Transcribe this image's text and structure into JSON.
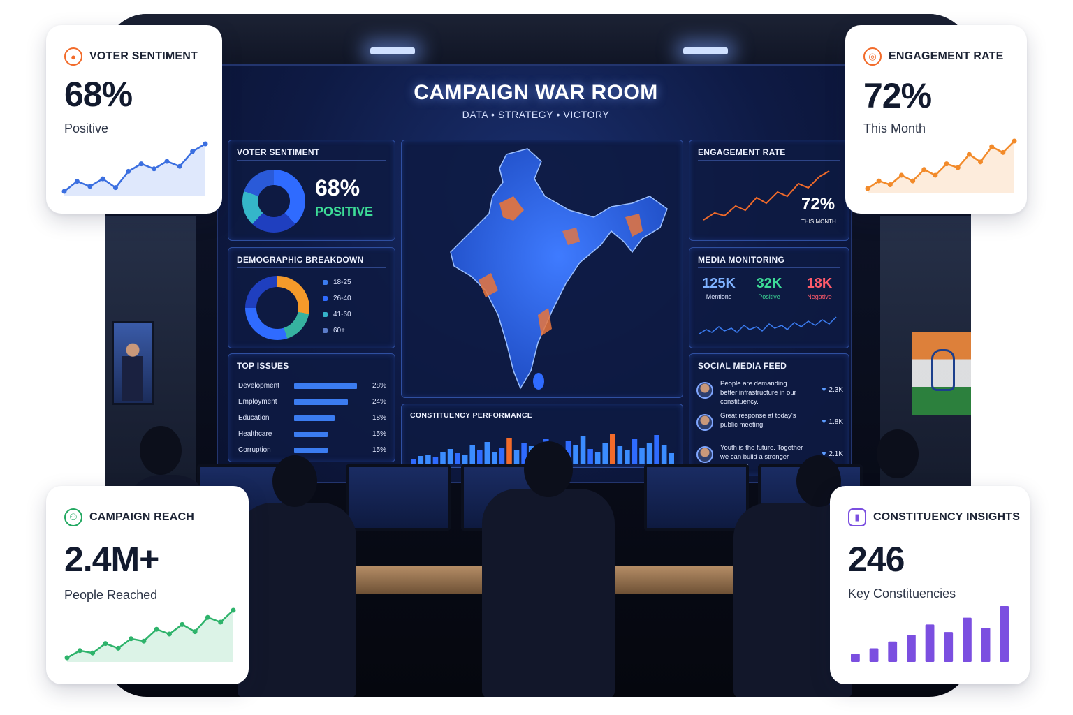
{
  "wall": {
    "title": "CAMPAIGN WAR ROOM",
    "subtitle": "DATA • STRATEGY • VICTORY",
    "voter_sentiment": {
      "title": "VOTER SENTIMENT",
      "value": "68%",
      "label": "POSITIVE"
    },
    "demographic": {
      "title": "DEMOGRAPHIC BREAKDOWN",
      "groups": [
        "18-25",
        "26-40",
        "41-60",
        "60+"
      ]
    },
    "top_issues": {
      "title": "TOP ISSUES",
      "items": [
        {
          "label": "Development",
          "pct": "28%",
          "value": 28
        },
        {
          "label": "Employment",
          "pct": "24%",
          "value": 24
        },
        {
          "label": "Education",
          "pct": "18%",
          "value": 18
        },
        {
          "label": "Healthcare",
          "pct": "15%",
          "value": 15
        },
        {
          "label": "Corruption",
          "pct": "15%",
          "value": 15
        }
      ]
    },
    "engagement": {
      "title": "ENGAGEMENT RATE",
      "value": "72%",
      "label": "THIS MONTH"
    },
    "media": {
      "title": "MEDIA MONITORING",
      "stats": [
        {
          "value": "125K",
          "label": "Mentions",
          "color": "#7fb2ff"
        },
        {
          "value": "32K",
          "label": "Positive",
          "color": "#3ddc97"
        },
        {
          "value": "18K",
          "label": "Negative",
          "color": "#ff5a6a"
        }
      ]
    },
    "feed": {
      "title": "SOCIAL MEDIA FEED",
      "items": [
        {
          "text": "People are demanding better infrastructure in our constituency.",
          "count": "2.3K"
        },
        {
          "text": "Great response at today's public meeting!",
          "count": "1.8K"
        },
        {
          "text": "Youth is the future. Together we can build a stronger tomorrow.",
          "count": "2.1K"
        }
      ]
    },
    "constituency": {
      "title": "CONSTITUENCY PERFORMANCE"
    }
  },
  "cards": {
    "voter_sentiment": {
      "title": "VOTER SENTIMENT",
      "value": "68%",
      "sub": "Positive",
      "icon": "user-shield-icon",
      "color": "#f26b2a"
    },
    "engagement": {
      "title": "ENGAGEMENT RATE",
      "value": "72%",
      "sub": "This Month",
      "icon": "target-icon",
      "color": "#f26b2a"
    },
    "reach": {
      "title": "CAMPAIGN REACH",
      "value": "2.4M+",
      "sub": "People Reached",
      "icon": "people-group-icon",
      "color": "#22a861"
    },
    "insights": {
      "title": "CONSTITUENCY INSIGHTS",
      "value": "246",
      "sub": "Key Constituencies",
      "icon": "bar-chart-icon",
      "color": "#7b4fe0"
    }
  },
  "chart_data": [
    {
      "type": "line",
      "name": "voter-sentiment-trend",
      "x": [
        1,
        2,
        3,
        4,
        5,
        6,
        7,
        8,
        9,
        10,
        11,
        12
      ],
      "values": [
        10,
        18,
        14,
        20,
        13,
        26,
        32,
        28,
        34,
        30,
        42,
        48
      ]
    },
    {
      "type": "line",
      "name": "engagement-trend",
      "x": [
        1,
        2,
        3,
        4,
        5,
        6,
        7,
        8,
        9,
        10,
        11,
        12,
        13,
        14
      ],
      "values": [
        12,
        20,
        16,
        26,
        20,
        32,
        26,
        38,
        34,
        48,
        40,
        56,
        50,
        62
      ]
    },
    {
      "type": "line",
      "name": "reach-trend",
      "x": [
        1,
        2,
        3,
        4,
        5,
        6,
        7,
        8,
        9,
        10,
        11,
        12,
        13,
        14
      ],
      "values": [
        8,
        14,
        12,
        20,
        16,
        24,
        22,
        32,
        28,
        36,
        30,
        42,
        38,
        48
      ]
    },
    {
      "type": "bar",
      "name": "constituency-insights",
      "values": [
        12,
        20,
        30,
        40,
        55,
        44,
        65,
        50,
        82
      ]
    }
  ]
}
